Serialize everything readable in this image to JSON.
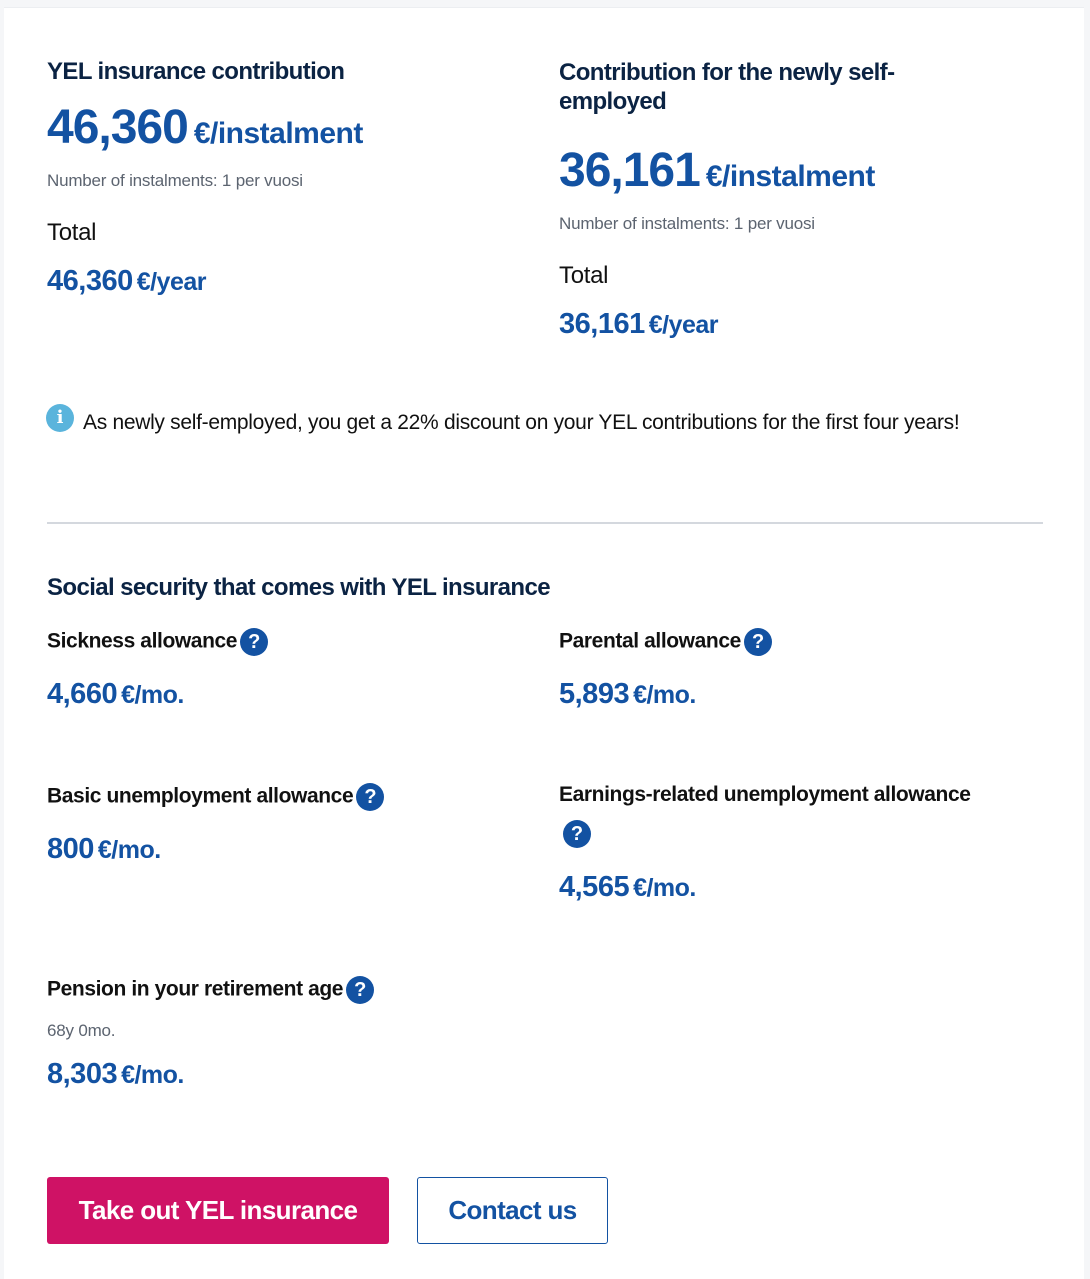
{
  "contribution": {
    "title": "YEL insurance contribution",
    "amount": "46,360",
    "amount_unit": "€/instalment",
    "instalments": "Number of instalments: 1 per vuosi",
    "total_label": "Total",
    "total_amount": "46,360",
    "total_unit": "€/year"
  },
  "newly_self_employed": {
    "title_line1": "Contribution for the newly self-",
    "title_line2": "employed",
    "amount": "36,161",
    "amount_unit": "€/instalment",
    "instalments": "Number of instalments: 1 per vuosi",
    "total_label": "Total",
    "total_amount": "36,161",
    "total_unit": "€/year"
  },
  "info": {
    "icon": "info-icon",
    "text": "As newly self-employed, you get a 22% discount on your YEL contributions for the first four years!"
  },
  "social_security": {
    "heading": "Social security that comes with YEL insurance",
    "help_icon": "question-circle-icon",
    "items": [
      {
        "label": "Sickness allowance",
        "amount": "4,660",
        "unit": "€/mo."
      },
      {
        "label": "Parental allowance",
        "amount": "5,893",
        "unit": "€/mo."
      },
      {
        "label": "Basic unemployment allowance",
        "amount": "800",
        "unit": "€/mo."
      },
      {
        "label": "Earnings-related unemployment allowance",
        "amount": "4,565",
        "unit": "€/mo."
      },
      {
        "label": "Pension in your retirement age",
        "sub": "68y 0mo.",
        "amount": "8,303",
        "unit": "€/mo."
      }
    ]
  },
  "actions": {
    "primary": "Take out YEL insurance",
    "secondary": "Contact us"
  },
  "colors": {
    "navy": "#0b2343",
    "blue": "#1352a2",
    "primary_button": "#cf1265",
    "info": "#5ab4dc"
  }
}
